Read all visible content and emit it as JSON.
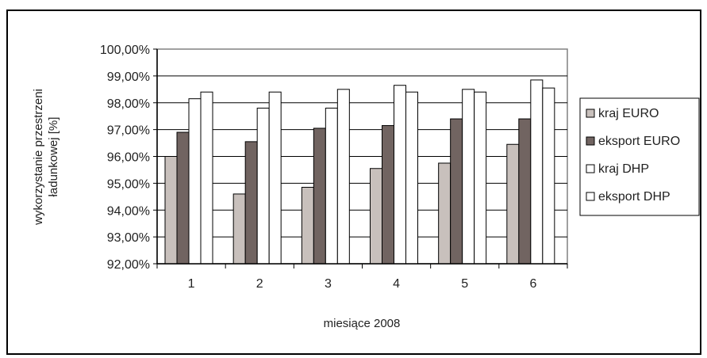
{
  "chart_data": {
    "type": "bar",
    "categories": [
      "1",
      "2",
      "3",
      "4",
      "5",
      "6"
    ],
    "series": [
      {
        "name": "kraj EURO",
        "color": "#c8c0bc",
        "values": [
          96.0,
          94.6,
          94.85,
          95.55,
          95.75,
          96.45
        ]
      },
      {
        "name": "eksport EURO",
        "color": "#716461",
        "values": [
          96.9,
          96.55,
          97.05,
          97.15,
          97.4,
          97.4
        ]
      },
      {
        "name": "kraj DHP",
        "color": "#ffffff",
        "values": [
          98.15,
          97.8,
          97.8,
          98.65,
          98.5,
          98.85
        ]
      },
      {
        "name": "eksport DHP",
        "color": "#ffffff",
        "values": [
          98.4,
          98.4,
          98.5,
          98.4,
          98.4,
          98.55
        ]
      }
    ],
    "ylim": [
      92,
      100
    ],
    "yticks": [
      "92,00%",
      "93,00%",
      "94,00%",
      "95,00%",
      "96,00%",
      "97,00%",
      "98,00%",
      "99,00%",
      "100,00%"
    ],
    "xlabel": "miesiące 2008",
    "ylabel": "wykorzystanie przestrzeni ładunkowej [%]",
    "ylabel_lines": [
      "wykorzystanie przestrzeni",
      "ładunkowej [%]"
    ],
    "grid": true,
    "legend_position": "right"
  }
}
